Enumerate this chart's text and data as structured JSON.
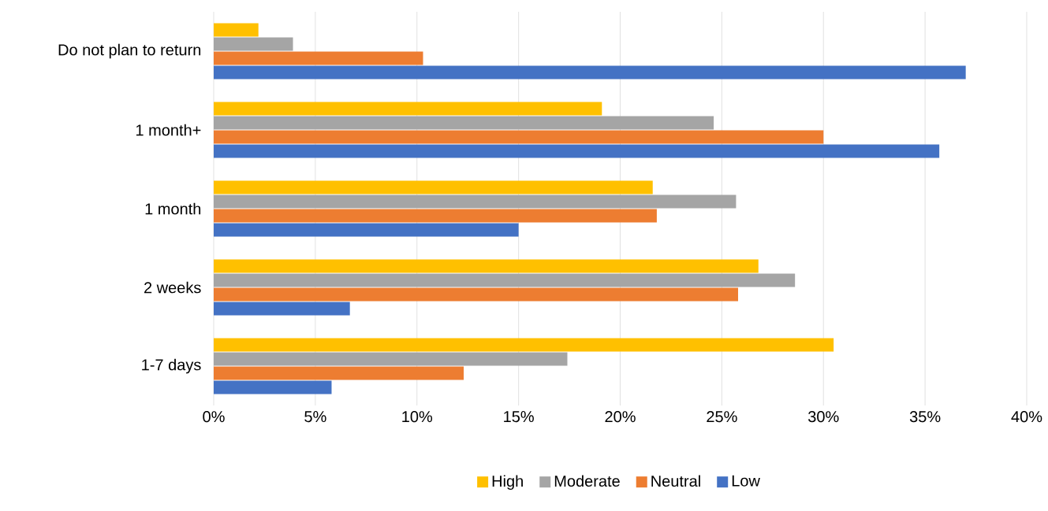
{
  "chart_data": {
    "type": "bar",
    "orientation": "horizontal",
    "categories": [
      "Do not plan to return",
      "1 month+",
      "1 month",
      "2 weeks",
      "1-7 days"
    ],
    "series": [
      {
        "name": "High",
        "color": "#ffc000",
        "values": [
          2.2,
          19.1,
          21.6,
          26.8,
          30.5
        ]
      },
      {
        "name": "Moderate",
        "color": "#a5a5a5",
        "values": [
          3.9,
          24.6,
          25.7,
          28.6,
          17.4
        ]
      },
      {
        "name": "Neutral",
        "color": "#ed7d31",
        "values": [
          10.3,
          30.0,
          21.8,
          25.8,
          12.3
        ]
      },
      {
        "name": "Low",
        "color": "#4472c4",
        "values": [
          37.0,
          35.7,
          15.0,
          6.7,
          5.8
        ]
      }
    ],
    "xlim": [
      0,
      40
    ],
    "xticks": [
      {
        "value": 0,
        "label": "0%"
      },
      {
        "value": 5,
        "label": "5%"
      },
      {
        "value": 10,
        "label": "10%"
      },
      {
        "value": 15,
        "label": "15%"
      },
      {
        "value": 20,
        "label": "20%"
      },
      {
        "value": 25,
        "label": "25%"
      },
      {
        "value": 30,
        "label": "30%"
      },
      {
        "value": 35,
        "label": "35%"
      },
      {
        "value": 40,
        "label": "40%"
      }
    ],
    "grid": "x",
    "legend": "bottom"
  }
}
